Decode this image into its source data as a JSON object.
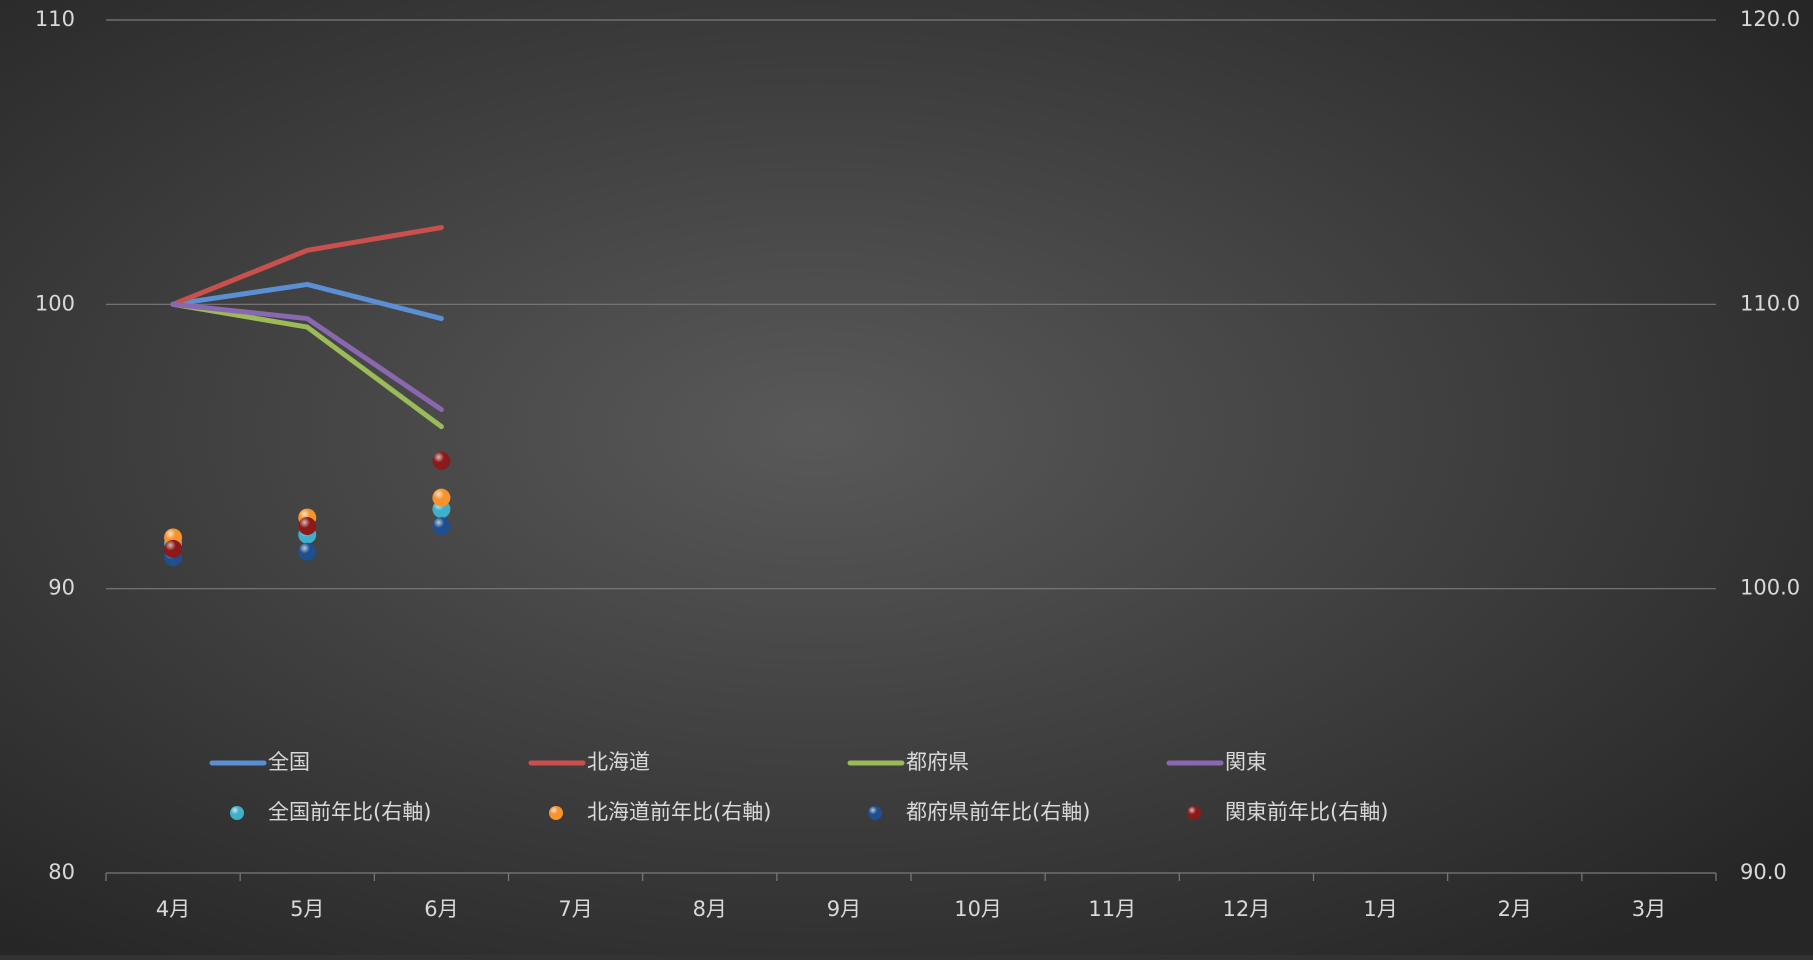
{
  "chart_data": {
    "type": "line",
    "categories": [
      "4月",
      "5月",
      "6月",
      "7月",
      "8月",
      "9月",
      "10月",
      "11月",
      "12月",
      "1月",
      "2月",
      "3月"
    ],
    "series": [
      {
        "name": "全国",
        "color": "#5b8fd4",
        "values": [
          100,
          100.7,
          99.5,
          null,
          null,
          null,
          null,
          null,
          null,
          null,
          null,
          null
        ]
      },
      {
        "name": "北海道",
        "color": "#c9504d",
        "values": [
          100,
          101.9,
          102.7,
          null,
          null,
          null,
          null,
          null,
          null,
          null,
          null,
          null
        ]
      },
      {
        "name": "都府県",
        "color": "#9bbb59",
        "values": [
          100,
          99.2,
          95.7,
          null,
          null,
          null,
          null,
          null,
          null,
          null,
          null,
          null
        ]
      },
      {
        "name": "関東",
        "color": "#8a68b0",
        "values": [
          100,
          99.5,
          96.3,
          null,
          null,
          null,
          null,
          null,
          null,
          null,
          null,
          null
        ]
      },
      {
        "name": "全国前年比(右軸)",
        "type": "scatter",
        "axis": "y2",
        "color": "#3fb0cc",
        "values": [
          101.6,
          101.9,
          102.8,
          null,
          null,
          null,
          null,
          null,
          null,
          null,
          null,
          null
        ]
      },
      {
        "name": "北海道前年比(右軸)",
        "type": "scatter",
        "axis": "y2",
        "color": "#f7922e",
        "values": [
          101.8,
          102.5,
          103.2,
          null,
          null,
          null,
          null,
          null,
          null,
          null,
          null,
          null
        ]
      },
      {
        "name": "都府県前年比(右軸)",
        "type": "scatter",
        "axis": "y2",
        "color": "#1f4f8f",
        "values": [
          101.1,
          101.3,
          102.2,
          null,
          null,
          null,
          null,
          null,
          null,
          null,
          null,
          null
        ]
      },
      {
        "name": "関東前年比(右軸)",
        "type": "scatter",
        "axis": "y2",
        "color": "#8b1a1a",
        "values": [
          101.4,
          102.2,
          104.5,
          null,
          null,
          null,
          null,
          null,
          null,
          null,
          null,
          null
        ]
      }
    ],
    "ylim": [
      80,
      110
    ],
    "yticks": [
      80,
      90,
      100,
      110
    ],
    "y2lim": [
      90,
      120
    ],
    "y2ticks": [
      {
        "value": 90,
        "label": "90.0"
      },
      {
        "value": 100,
        "label": "100.0"
      },
      {
        "value": 110,
        "label": "110.0"
      },
      {
        "value": 120,
        "label": "120.0"
      }
    ],
    "grid": true
  }
}
